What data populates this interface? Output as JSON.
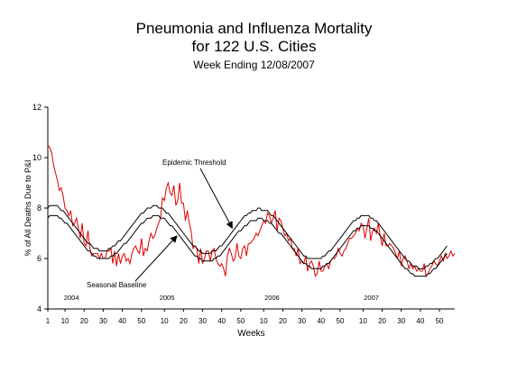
{
  "chart_data": {
    "type": "line",
    "title": "Pneumonia and Influenza Mortality",
    "title_line2": "for 122 U.S. Cities",
    "subtitle": "Week Ending 12/08/2007",
    "xlabel": "Weeks",
    "ylabel": "% of All Deaths Due to P&I",
    "ylim": [
      4,
      12
    ],
    "yticks": [
      4,
      6,
      8,
      10,
      12
    ],
    "x_tick_labels": [
      "1",
      "10",
      "20",
      "30",
      "40",
      "50",
      "10",
      "20",
      "30",
      "40",
      "50",
      "10",
      "20",
      "30",
      "40",
      "50",
      "10",
      "20",
      "30",
      "40",
      "50"
    ],
    "x_ticks_index": [
      0,
      9,
      19,
      29,
      39,
      49,
      61,
      71,
      81,
      91,
      101,
      113,
      123,
      133,
      143,
      153,
      165,
      175,
      185,
      195,
      205
    ],
    "year_labels": [
      {
        "label": "2004",
        "index": 10
      },
      {
        "label": "2005",
        "index": 60
      },
      {
        "label": "2006",
        "index": 115
      },
      {
        "label": "2007",
        "index": 167
      }
    ],
    "annotations": [
      {
        "text": "Epidemic Threshold",
        "points_to": "epidemic-threshold"
      },
      {
        "text": "Seasonal Baseline",
        "points_to": "seasonal-baseline"
      }
    ],
    "series": [
      {
        "key": "observed",
        "color": "#e00000",
        "values": [
          10.5,
          10.4,
          10.2,
          9.7,
          9.4,
          9.1,
          8.7,
          8.8,
          8.5,
          8.0,
          7.9,
          7.7,
          7.9,
          7.3,
          7.4,
          7.6,
          7.2,
          6.8,
          7.4,
          6.6,
          6.5,
          7.1,
          6.4,
          6.1,
          6.2,
          6.2,
          6.2,
          6.0,
          6.2,
          6.0,
          6.0,
          6.3,
          6.3,
          6.4,
          5.8,
          6.3,
          5.7,
          6.2,
          5.8,
          6.1,
          6.2,
          5.9,
          6.0,
          5.8,
          6.2,
          6.4,
          6.5,
          6.3,
          6.2,
          6.8,
          6.1,
          6.4,
          6.3,
          6.7,
          7.0,
          6.8,
          6.9,
          7.2,
          7.4,
          7.6,
          8.4,
          8.3,
          8.8,
          9.0,
          8.6,
          8.5,
          8.9,
          8.1,
          8.3,
          9.0,
          8.2,
          8.2,
          7.5,
          7.9,
          7.4,
          7.1,
          6.4,
          6.5,
          6.4,
          5.8,
          6.4,
          5.8,
          6.0,
          6.3,
          6.3,
          5.9,
          6.3,
          6.4,
          6.0,
          5.8,
          5.7,
          5.8,
          5.6,
          5.3,
          6.1,
          6.4,
          6.2,
          5.9,
          6.0,
          6.6,
          6.1,
          6.0,
          6.4,
          6.5,
          6.1,
          6.6,
          6.6,
          6.7,
          6.8,
          7.0,
          6.9,
          7.1,
          7.3,
          7.5,
          7.4,
          7.8,
          7.7,
          7.4,
          7.6,
          7.9,
          7.1,
          7.6,
          7.5,
          7.2,
          6.9,
          7.0,
          6.7,
          6.8,
          6.4,
          6.4,
          6.1,
          6.4,
          5.8,
          5.9,
          5.8,
          6.1,
          5.5,
          5.8,
          5.9,
          5.7,
          5.3,
          5.4,
          5.9,
          5.5,
          5.5,
          5.7,
          5.8,
          5.6,
          5.9,
          6.0,
          6.0,
          6.1,
          6.4,
          6.2,
          6.1,
          6.3,
          6.4,
          6.6,
          6.8,
          6.8,
          6.9,
          7.0,
          7.2,
          7.1,
          7.4,
          7.3,
          6.8,
          7.2,
          7.6,
          6.7,
          7.1,
          7.2,
          7.0,
          7.4,
          6.9,
          6.5,
          7.0,
          6.5,
          6.5,
          6.6,
          6.5,
          6.4,
          6.2,
          6.0,
          6.3,
          5.7,
          6.0,
          6.1,
          5.9,
          5.6,
          5.8,
          5.6,
          5.7,
          5.5,
          5.6,
          5.5,
          5.5,
          5.8,
          5.3,
          5.4,
          5.6,
          5.7,
          5.9,
          5.8,
          5.7,
          5.9,
          6.1,
          5.9,
          6.2,
          6.0,
          6.1,
          6.3,
          6.1,
          6.2
        ]
      },
      {
        "key": "epidemic-threshold",
        "color": "#000000",
        "values": [
          8.0,
          8.1,
          8.1,
          8.1,
          8.1,
          8.1,
          8.0,
          7.9,
          7.9,
          7.8,
          7.7,
          7.6,
          7.5,
          7.4,
          7.3,
          7.2,
          7.1,
          7.0,
          6.9,
          6.8,
          6.7,
          6.6,
          6.6,
          6.5,
          6.4,
          6.4,
          6.4,
          6.3,
          6.3,
          6.3,
          6.3,
          6.3,
          6.4,
          6.4,
          6.5,
          6.5,
          6.6,
          6.7,
          6.7,
          6.8,
          6.9,
          7.0,
          7.1,
          7.2,
          7.3,
          7.4,
          7.5,
          7.6,
          7.7,
          7.8,
          7.8,
          7.9,
          8.0,
          8.0,
          8.0,
          8.1,
          8.1,
          8.1,
          8.0,
          8.0,
          8.0,
          7.9,
          7.8,
          7.8,
          7.7,
          7.6,
          7.5,
          7.4,
          7.3,
          7.2,
          7.1,
          7.0,
          6.9,
          6.8,
          6.7,
          6.6,
          6.5,
          6.5,
          6.4,
          6.3,
          6.3,
          6.2,
          6.2,
          6.2,
          6.2,
          6.2,
          6.3,
          6.3,
          6.3,
          6.4,
          6.5,
          6.5,
          6.6,
          6.7,
          6.8,
          6.9,
          7.0,
          7.1,
          7.2,
          7.3,
          7.4,
          7.5,
          7.6,
          7.7,
          7.7,
          7.8,
          7.8,
          7.9,
          7.9,
          7.9,
          8.0,
          8.0,
          7.9,
          7.9,
          7.9,
          7.9,
          7.8,
          7.7,
          7.7,
          7.6,
          7.5,
          7.4,
          7.3,
          7.2,
          7.1,
          7.0,
          6.9,
          6.8,
          6.7,
          6.6,
          6.5,
          6.4,
          6.3,
          6.2,
          6.1,
          6.1,
          6.0,
          6.0,
          6.0,
          6.0,
          6.0,
          6.0,
          6.0,
          6.0,
          6.1,
          6.1,
          6.2,
          6.3,
          6.3,
          6.4,
          6.5,
          6.6,
          6.7,
          6.8,
          6.9,
          7.0,
          7.1,
          7.2,
          7.3,
          7.4,
          7.5,
          7.5,
          7.6,
          7.6,
          7.7,
          7.7,
          7.7,
          7.7,
          7.7,
          7.6,
          7.6,
          7.5,
          7.5,
          7.4,
          7.3,
          7.2,
          7.1,
          7.0,
          6.9,
          6.8,
          6.7,
          6.6,
          6.5,
          6.4,
          6.3,
          6.2,
          6.1,
          6.0,
          5.9,
          5.9,
          5.8,
          5.7,
          5.7,
          5.7,
          5.6,
          5.6,
          5.6,
          5.6,
          5.7,
          5.7,
          5.8,
          5.8,
          5.9,
          6.0,
          6.0,
          6.1,
          6.2,
          6.3,
          6.4,
          6.5
        ]
      },
      {
        "key": "seasonal-baseline",
        "color": "#000000",
        "values": [
          7.6,
          7.7,
          7.7,
          7.7,
          7.7,
          7.7,
          7.6,
          7.6,
          7.5,
          7.4,
          7.4,
          7.3,
          7.2,
          7.1,
          7.0,
          6.9,
          6.8,
          6.7,
          6.6,
          6.5,
          6.4,
          6.3,
          6.3,
          6.2,
          6.1,
          6.1,
          6.0,
          6.0,
          6.0,
          6.0,
          6.0,
          6.0,
          6.0,
          6.1,
          6.1,
          6.2,
          6.2,
          6.3,
          6.4,
          6.5,
          6.6,
          6.6,
          6.7,
          6.8,
          6.9,
          7.0,
          7.1,
          7.2,
          7.3,
          7.4,
          7.4,
          7.5,
          7.6,
          7.6,
          7.6,
          7.7,
          7.7,
          7.7,
          7.7,
          7.6,
          7.6,
          7.6,
          7.5,
          7.4,
          7.3,
          7.3,
          7.2,
          7.1,
          7.0,
          6.9,
          6.8,
          6.7,
          6.6,
          6.5,
          6.4,
          6.3,
          6.2,
          6.1,
          6.1,
          6.0,
          6.0,
          5.9,
          5.9,
          5.9,
          5.9,
          5.9,
          5.9,
          6.0,
          6.0,
          6.1,
          6.1,
          6.2,
          6.3,
          6.4,
          6.5,
          6.6,
          6.7,
          6.8,
          6.9,
          7.0,
          7.1,
          7.1,
          7.2,
          7.3,
          7.3,
          7.4,
          7.5,
          7.5,
          7.5,
          7.5,
          7.6,
          7.6,
          7.6,
          7.5,
          7.5,
          7.5,
          7.4,
          7.4,
          7.3,
          7.2,
          7.1,
          7.0,
          7.0,
          6.9,
          6.8,
          6.7,
          6.6,
          6.5,
          6.4,
          6.3,
          6.2,
          6.1,
          6.0,
          5.9,
          5.8,
          5.8,
          5.7,
          5.7,
          5.6,
          5.6,
          5.6,
          5.6,
          5.6,
          5.6,
          5.7,
          5.7,
          5.8,
          5.8,
          5.9,
          6.0,
          6.1,
          6.2,
          6.3,
          6.4,
          6.5,
          6.6,
          6.7,
          6.8,
          6.9,
          7.0,
          7.1,
          7.1,
          7.2,
          7.2,
          7.3,
          7.3,
          7.3,
          7.3,
          7.3,
          7.2,
          7.2,
          7.1,
          7.1,
          7.0,
          6.9,
          6.8,
          6.7,
          6.6,
          6.5,
          6.4,
          6.3,
          6.2,
          6.1,
          6.0,
          5.9,
          5.8,
          5.7,
          5.6,
          5.6,
          5.5,
          5.4,
          5.4,
          5.3,
          5.3,
          5.3,
          5.3,
          5.3,
          5.3,
          5.3,
          5.4,
          5.4,
          5.5,
          5.6,
          5.6,
          5.7,
          5.8,
          5.9,
          6.0,
          6.1,
          6.2
        ]
      }
    ]
  }
}
